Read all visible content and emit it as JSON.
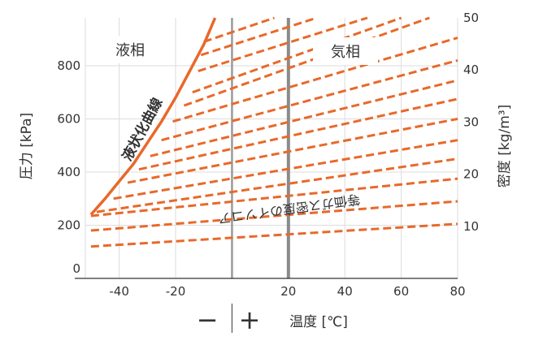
{
  "chart_data": {
    "type": "line",
    "xlabel": "温度 [℃]",
    "ylabel_left": "圧力 [kPa]",
    "ylabel_right": "密度 [kg/m³]",
    "xlim": [
      -52,
      80
    ],
    "ylim": [
      0,
      980
    ],
    "y2lim": [
      0,
      50
    ],
    "x_ticks": [
      "-40",
      "-20",
      "20",
      "40",
      "60",
      "80"
    ],
    "x_tick_values": [
      -40,
      -20,
      20,
      40,
      60,
      80
    ],
    "y_ticks": [
      "0",
      "200",
      "400",
      "600",
      "800"
    ],
    "y_tick_values": [
      0,
      200,
      400,
      600,
      800
    ],
    "y2_ticks": [
      "10",
      "20",
      "30",
      "40",
      "50"
    ],
    "y2_tick_values": [
      10,
      20,
      30,
      40,
      50
    ],
    "grid": true,
    "zero_line_x": 0,
    "highlight_line_x": 20,
    "sign_minus": "−",
    "sign_plus": "+",
    "regions": {
      "liquid": "液相",
      "gas": "気相"
    },
    "annotations": {
      "liquefaction_curve": "液状化曲線",
      "isochore": "等価ガス密度のイソコア"
    },
    "liquefaction_curve": {
      "name": "液状化曲線",
      "color": "#e8692a",
      "points": [
        [
          -50,
          240
        ],
        [
          -45,
          300
        ],
        [
          -40,
          365
        ],
        [
          -35,
          430
        ],
        [
          -30,
          510
        ],
        [
          -25,
          590
        ],
        [
          -20,
          680
        ],
        [
          -15,
          780
        ],
        [
          -10,
          880
        ],
        [
          -6,
          980
        ]
      ]
    },
    "isochores": {
      "color": "#e8692a",
      "series": [
        {
          "x": [
            -50,
            80
          ],
          "y": [
            120,
            205
          ]
        },
        {
          "x": [
            -50,
            80
          ],
          "y": [
            180,
            290
          ]
        },
        {
          "x": [
            -50,
            80
          ],
          "y": [
            235,
            375
          ]
        },
        {
          "x": [
            -48,
            80
          ],
          "y": [
            250,
            450
          ]
        },
        {
          "x": [
            -42,
            80
          ],
          "y": [
            300,
            520
          ]
        },
        {
          "x": [
            -37,
            80
          ],
          "y": [
            360,
            600
          ]
        },
        {
          "x": [
            -33,
            80
          ],
          "y": [
            410,
            675
          ]
        },
        {
          "x": [
            -29,
            80
          ],
          "y": [
            460,
            745
          ]
        },
        {
          "x": [
            -25,
            80
          ],
          "y": [
            520,
            820
          ]
        },
        {
          "x": [
            -21,
            80
          ],
          "y": [
            590,
            905
          ]
        },
        {
          "x": [
            -17,
            70
          ],
          "y": [
            650,
            980
          ]
        },
        {
          "x": [
            -14,
            60
          ],
          "y": [
            700,
            980
          ]
        },
        {
          "x": [
            -12,
            48
          ],
          "y": [
            780,
            980
          ]
        },
        {
          "x": [
            -11,
            30
          ],
          "y": [
            840,
            980
          ]
        },
        {
          "x": [
            -10,
            15
          ],
          "y": [
            890,
            980
          ]
        }
      ]
    }
  }
}
